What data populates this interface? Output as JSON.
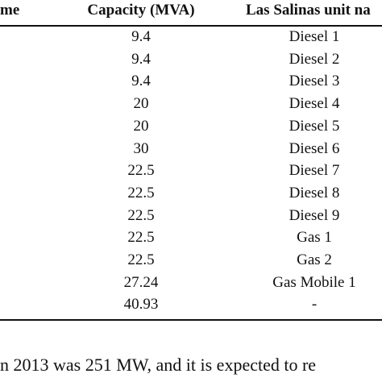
{
  "table": {
    "header": [
      "me",
      "Capacity (MVA)",
      "Las Salinas unit na"
    ],
    "rows": [
      [
        9.4,
        "Diesel 1"
      ],
      [
        9.4,
        "Diesel 2"
      ],
      [
        9.4,
        "Diesel 3"
      ],
      [
        20,
        "Diesel 4"
      ],
      [
        20,
        "Diesel 5"
      ],
      [
        30,
        "Diesel 6"
      ],
      [
        22.5,
        "Diesel 7"
      ],
      [
        22.5,
        "Diesel 8"
      ],
      [
        22.5,
        "Diesel 9"
      ],
      [
        22.5,
        "Gas 1"
      ],
      [
        22.5,
        "Gas 2"
      ],
      [
        27.24,
        "Gas Mobile 1"
      ],
      [
        40.93,
        "-"
      ]
    ]
  },
  "footer": "n 2013 was 251 MW, and it is expected to re"
}
